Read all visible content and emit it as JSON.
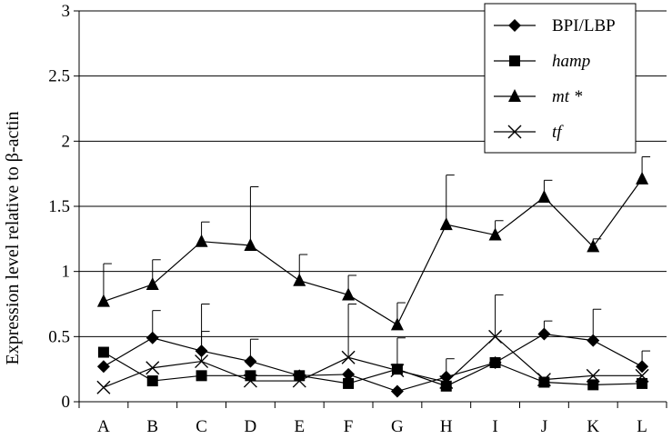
{
  "chart_data": {
    "type": "line",
    "title": "",
    "xlabel": "",
    "ylabel": "Expression level relative to β-actin",
    "ylim": [
      0,
      3
    ],
    "yticks": [
      0,
      0.5,
      1,
      1.5,
      2,
      2.5,
      3
    ],
    "ytick_labels": [
      "0",
      "0.5",
      "1",
      "1.5",
      "2",
      "2.5",
      "3"
    ],
    "grid": true,
    "legend_position": "top-right",
    "categories": [
      "A",
      "B",
      "C",
      "D",
      "E",
      "F",
      "G",
      "H",
      "I",
      "J",
      "K",
      "L"
    ],
    "series": [
      {
        "name": "BPI/LBP",
        "italic": false,
        "marker": "diamond",
        "values": [
          0.27,
          0.49,
          0.39,
          0.31,
          0.2,
          0.21,
          0.08,
          0.19,
          0.3,
          0.52,
          0.47,
          0.27
        ],
        "err": [
          null,
          0.21,
          0.36,
          0.17,
          null,
          null,
          null,
          0.14,
          null,
          0.1,
          0.24,
          0.12
        ]
      },
      {
        "name": "hamp",
        "italic": true,
        "marker": "square",
        "values": [
          0.38,
          0.16,
          0.2,
          0.2,
          0.2,
          0.14,
          0.25,
          0.12,
          0.3,
          0.15,
          0.13,
          0.14
        ],
        "err": [
          null,
          null,
          null,
          null,
          null,
          null,
          0.24,
          null,
          null,
          null,
          null,
          null
        ]
      },
      {
        "name": "mt *",
        "italic": true,
        "marker": "triangle",
        "values": [
          0.77,
          0.9,
          1.23,
          1.2,
          0.93,
          0.82,
          0.59,
          1.36,
          1.28,
          1.57,
          1.19,
          1.71
        ],
        "err": [
          0.29,
          0.19,
          0.15,
          0.45,
          0.2,
          0.15,
          0.17,
          0.38,
          0.11,
          0.13,
          0.06,
          0.17
        ]
      },
      {
        "name": "tf",
        "italic": true,
        "marker": "x",
        "values": [
          0.11,
          0.26,
          0.31,
          0.16,
          0.16,
          0.34,
          0.24,
          0.15,
          0.5,
          0.17,
          0.2,
          0.2
        ],
        "err": [
          null,
          null,
          0.23,
          null,
          null,
          0.41,
          null,
          null,
          0.32,
          null,
          null,
          null
        ]
      }
    ]
  }
}
